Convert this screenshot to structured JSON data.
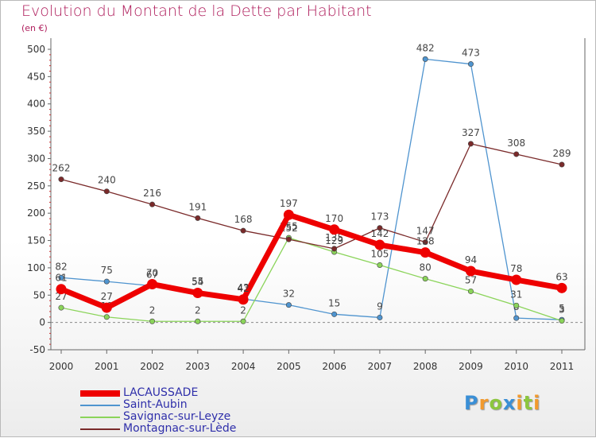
{
  "chart": {
    "title": "Evolution du Montant de la Dette par Habitant",
    "unit_label": "(en €)"
  },
  "logo": {
    "text": "Proxiti",
    "letters": [
      {
        "ch": "P",
        "color": "#3a8fd6"
      },
      {
        "ch": "r",
        "color": "#f29a2e"
      },
      {
        "ch": "o",
        "color": "#8cc63f"
      },
      {
        "ch": "x",
        "color": "#3a8fd6"
      },
      {
        "ch": "i",
        "color": "#f29a2e"
      },
      {
        "ch": "t",
        "color": "#8cc63f"
      },
      {
        "ch": "i",
        "color": "#f29a2e"
      }
    ]
  },
  "chart_data": {
    "type": "line",
    "title": "Evolution du Montant de la Dette par Habitant",
    "ylabel": "(en €)",
    "xlabel": "",
    "x": [
      "2000",
      "2001",
      "2002",
      "2003",
      "2004",
      "2005",
      "2006",
      "2007",
      "2008",
      "2009",
      "2010",
      "2011"
    ],
    "ylim": [
      -50,
      500
    ],
    "yticks": [
      -50,
      0,
      50,
      100,
      150,
      200,
      250,
      300,
      350,
      400,
      450,
      500
    ],
    "grid": false,
    "legend_position": "bottom-left",
    "series": [
      {
        "name": "LACAUSSADE",
        "color": "#ee0000",
        "values": [
          61,
          27,
          70,
          54,
          42,
          197,
          170,
          142,
          128,
          94,
          78,
          63
        ]
      },
      {
        "name": "Saint-Aubin",
        "color": "#4f94cf",
        "values": [
          82,
          75,
          67,
          55,
          43,
          32,
          15,
          9,
          482,
          473,
          8,
          5
        ]
      },
      {
        "name": "Savignac-sur-Leyze",
        "color": "#8bd45a",
        "values": [
          27,
          10,
          2,
          2,
          2,
          155,
          129,
          105,
          80,
          57,
          31,
          3
        ]
      },
      {
        "name": "Montagnac-sur-Lède",
        "color": "#7a2a2a",
        "values": [
          262,
          240,
          216,
          191,
          168,
          152,
          135,
          173,
          147,
          327,
          308,
          289
        ]
      }
    ]
  }
}
